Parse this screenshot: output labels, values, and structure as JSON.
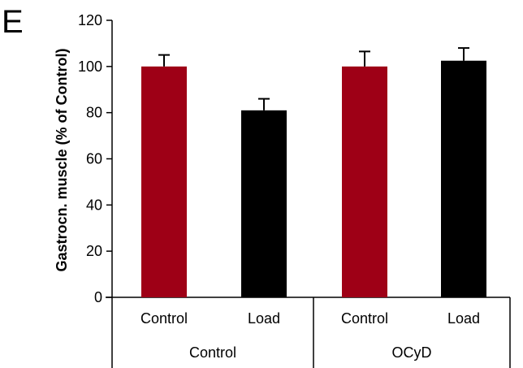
{
  "chart_data": {
    "type": "bar",
    "panel_label": "E",
    "ylabel": "Gastrocn. muscle (% of Control)",
    "xlabel": "",
    "ylim": [
      0,
      120
    ],
    "yticks": [
      0,
      20,
      40,
      60,
      80,
      100,
      120
    ],
    "grid": false,
    "legend": "none",
    "groups": [
      {
        "label": "Control",
        "categories": [
          "Control",
          "Load"
        ]
      },
      {
        "label": "OCyD",
        "categories": [
          "Control",
          "Load"
        ]
      }
    ],
    "bars": [
      {
        "group": "Control",
        "category": "Control",
        "value": 100,
        "error": 5,
        "color": "#9e0016"
      },
      {
        "group": "Control",
        "category": "Load",
        "value": 81,
        "error": 5,
        "color": "#000000"
      },
      {
        "group": "OCyD",
        "category": "Control",
        "value": 100,
        "error": 6.5,
        "color": "#9e0016"
      },
      {
        "group": "OCyD",
        "category": "Load",
        "value": 102.5,
        "error": 5.5,
        "color": "#000000"
      }
    ]
  }
}
